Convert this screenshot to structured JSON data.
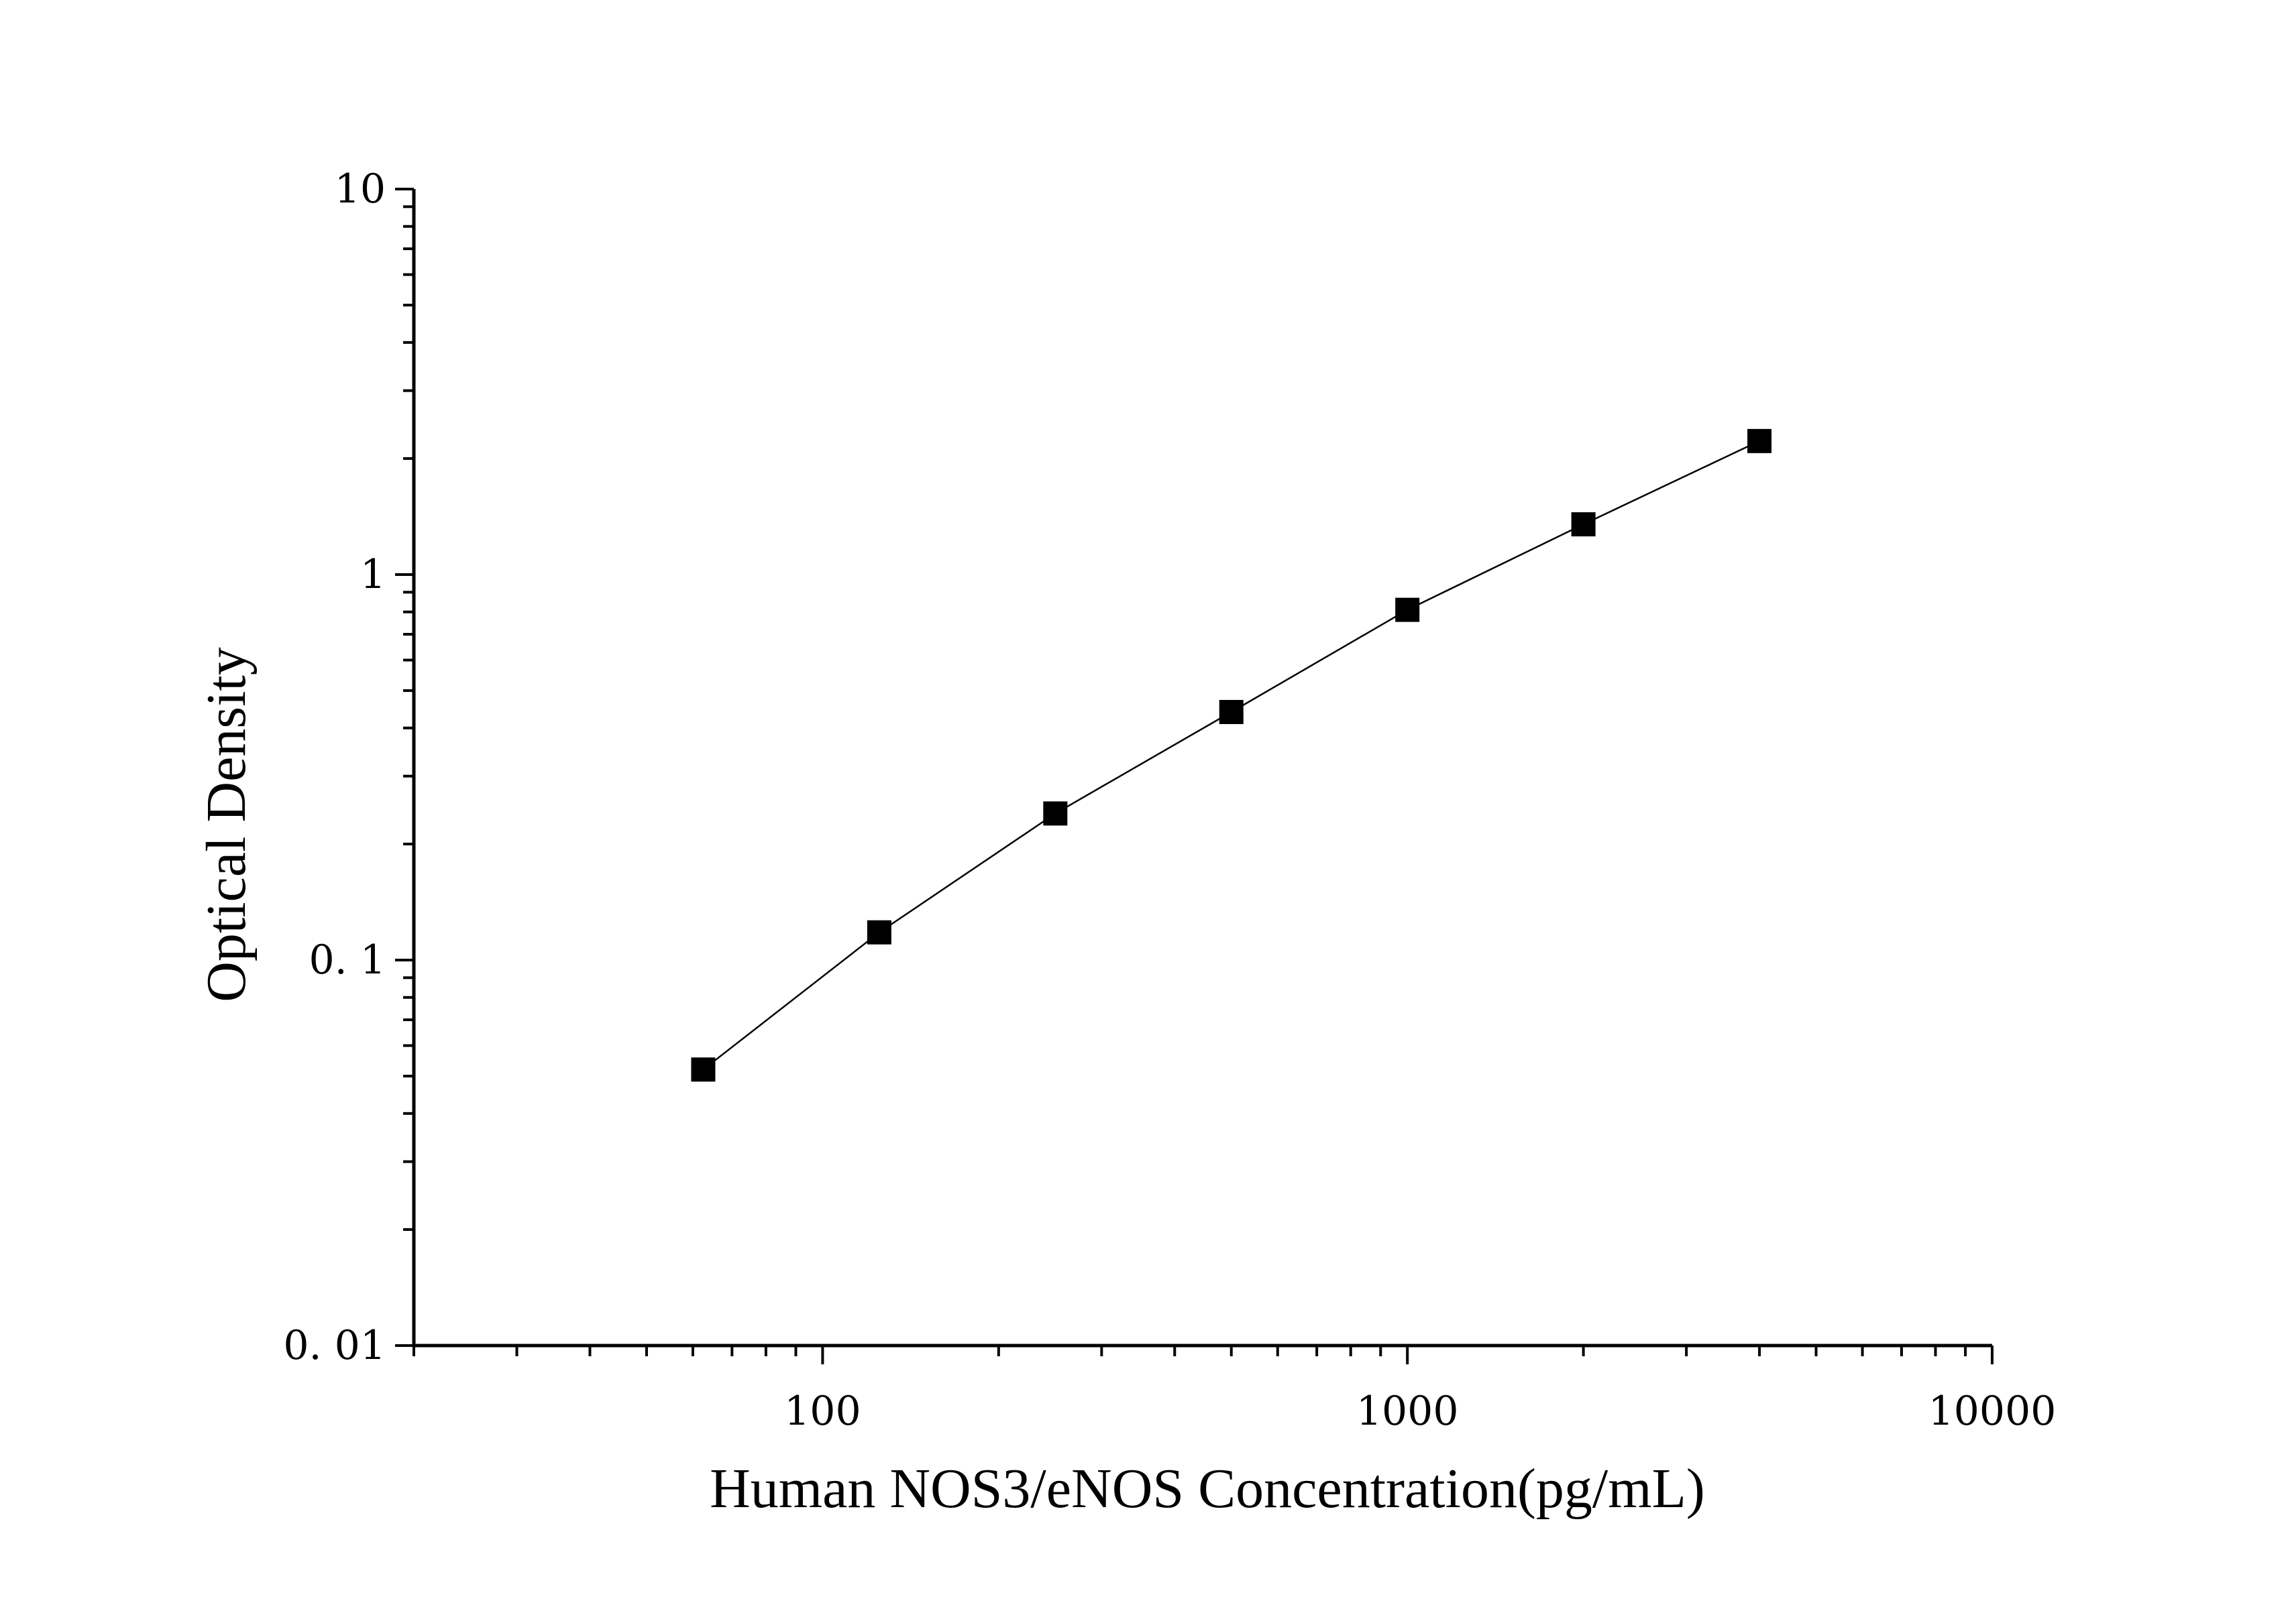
{
  "chart_data": {
    "type": "scatter",
    "xlabel": "Human NOS3/eNOS Concentration(pg/mL)",
    "ylabel": "Optical Density",
    "x_scale": "log",
    "y_scale": "log",
    "xlim": [
      20,
      10000
    ],
    "ylim": [
      0.01,
      10
    ],
    "x_ticks": [
      {
        "value": 100,
        "label": "100"
      },
      {
        "value": 1000,
        "label": "1000"
      },
      {
        "value": 10000,
        "label": "10000"
      }
    ],
    "y_ticks": [
      {
        "value": 0.01,
        "label": "0. 01"
      },
      {
        "value": 0.1,
        "label": "0. 1"
      },
      {
        "value": 1,
        "label": "1"
      },
      {
        "value": 10,
        "label": "10"
      }
    ],
    "grid": false,
    "marker": "square",
    "connected": true,
    "series": [
      {
        "x": [
          62.5,
          125,
          250,
          500,
          1000,
          2000,
          4000
        ],
        "y": [
          0.052,
          0.118,
          0.24,
          0.44,
          0.81,
          1.35,
          2.22
        ]
      }
    ],
    "colors": {
      "line": "#000000",
      "marker": "#000000",
      "axis": "#000000"
    }
  }
}
